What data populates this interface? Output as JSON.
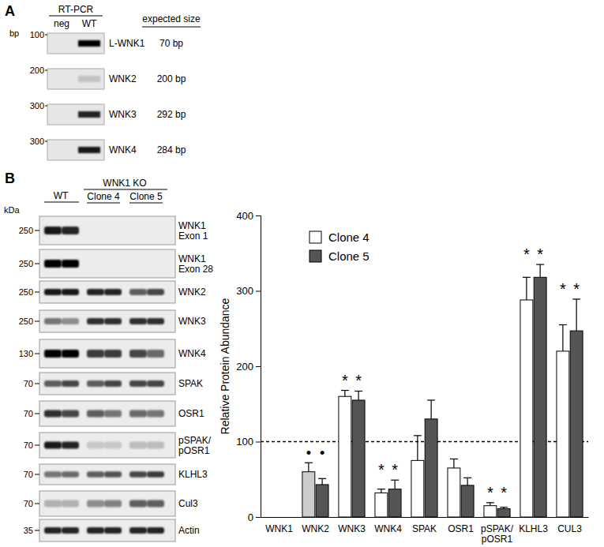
{
  "panel_a": {
    "label": "A",
    "header": "RT-PCR",
    "lanes": [
      "neg",
      "WT"
    ],
    "marker_unit": "bp",
    "size_header": "expected size",
    "rows": [
      {
        "marker": 100,
        "gene": "L-WNK1",
        "expected": "70 bp",
        "bands": [
          0,
          1
        ]
      },
      {
        "marker": 200,
        "gene": "WNK2",
        "expected": "200 bp",
        "bands": [
          0,
          0.15
        ]
      },
      {
        "marker": 300,
        "gene": "WNK3",
        "expected": "292 bp",
        "bands": [
          0,
          0.85
        ]
      },
      {
        "marker": 300,
        "gene": "WNK4",
        "expected": "284 bp",
        "bands": [
          0,
          0.9
        ]
      }
    ]
  },
  "panel_b": {
    "label": "B",
    "marker_unit": "kDa",
    "wt_label": "WT",
    "ko_label": "WNK1 KO",
    "clones": [
      "Clone 4",
      "Clone 5"
    ],
    "rows": [
      {
        "marker": 250,
        "label": [
          "WNK1",
          "Exon 1"
        ],
        "bands": [
          0.9,
          0.85,
          0,
          0,
          0,
          0
        ]
      },
      {
        "marker": 250,
        "label": [
          "WNK1",
          "Exon 28"
        ],
        "bands": [
          1,
          1,
          0,
          0,
          0,
          0
        ]
      },
      {
        "marker": 250,
        "label": [
          "WNK2"
        ],
        "bands": [
          0.9,
          0.9,
          0.85,
          0.85,
          0.6,
          0.7
        ]
      },
      {
        "marker": 250,
        "label": [
          "WNK3"
        ],
        "bands": [
          0.5,
          0.4,
          0.8,
          0.8,
          0.8,
          0.8
        ]
      },
      {
        "marker": 130,
        "label": [
          "WNK4"
        ],
        "bands": [
          1,
          1,
          0.75,
          0.75,
          0.7,
          0.55
        ]
      },
      {
        "marker": 70,
        "label": [
          "SPAK"
        ],
        "bands": [
          0.6,
          0.7,
          0.6,
          0.7,
          0.7,
          0.7
        ]
      },
      {
        "marker": 70,
        "label": [
          "OSR1"
        ],
        "bands": [
          0.8,
          0.7,
          0.6,
          0.5,
          0.55,
          0.5
        ]
      },
      {
        "marker": 70,
        "label": [
          "pSPAK/",
          "pOSR1"
        ],
        "bands": [
          0.9,
          0.85,
          0.15,
          0.15,
          0.2,
          0.2
        ]
      },
      {
        "marker": 70,
        "label": [
          "KLHL3"
        ],
        "bands": [
          0.5,
          0.55,
          0.6,
          0.65,
          0.7,
          0.75
        ]
      },
      {
        "marker": 70,
        "label": [
          "Cul3"
        ],
        "bands": [
          0.25,
          0.25,
          0.4,
          0.45,
          0.6,
          0.6
        ]
      },
      {
        "marker": 35,
        "label": [
          "Actin"
        ],
        "bands": [
          0.85,
          0.85,
          0.85,
          0.85,
          0.85,
          0.85
        ]
      }
    ]
  },
  "chart_data": {
    "type": "bar",
    "y_label": "Relative Protein Abundance",
    "categories": [
      "WNK1",
      "WNK2",
      "WNK3",
      "WNK4",
      "SPAK",
      "OSR1",
      "pSPAK/pOSR1",
      "KLHL3",
      "CUL3"
    ],
    "series": [
      {
        "name": "Clone 4",
        "color": "#ffffff",
        "colors": [
          "#ffffff",
          "#cccccc",
          "#ffffff",
          "#ffffff",
          "#ffffff",
          "#ffffff",
          "#ffffff",
          "#ffffff",
          "#ffffff"
        ],
        "values": [
          0,
          60,
          160,
          32,
          75,
          65,
          15,
          288,
          220
        ],
        "errors": [
          0,
          12,
          8,
          5,
          33,
          12,
          4,
          30,
          35
        ],
        "significance": [
          null,
          "•",
          "*",
          "*",
          null,
          null,
          "*",
          "*",
          "*"
        ]
      },
      {
        "name": "Clone 5",
        "color": "#555555",
        "values": [
          0,
          43,
          155,
          37,
          130,
          42,
          11,
          318,
          247
        ],
        "errors": [
          0,
          8,
          12,
          12,
          25,
          10,
          2,
          17,
          42
        ],
        "significance": [
          null,
          "•",
          "*",
          "*",
          null,
          null,
          "*",
          "*",
          "*"
        ]
      }
    ],
    "ylim": [
      0,
      400
    ],
    "yticks": [
      0,
      100,
      200,
      300,
      400
    ],
    "reference_line": {
      "value": 100,
      "line_style": "dashed"
    },
    "legend": "top-left"
  }
}
